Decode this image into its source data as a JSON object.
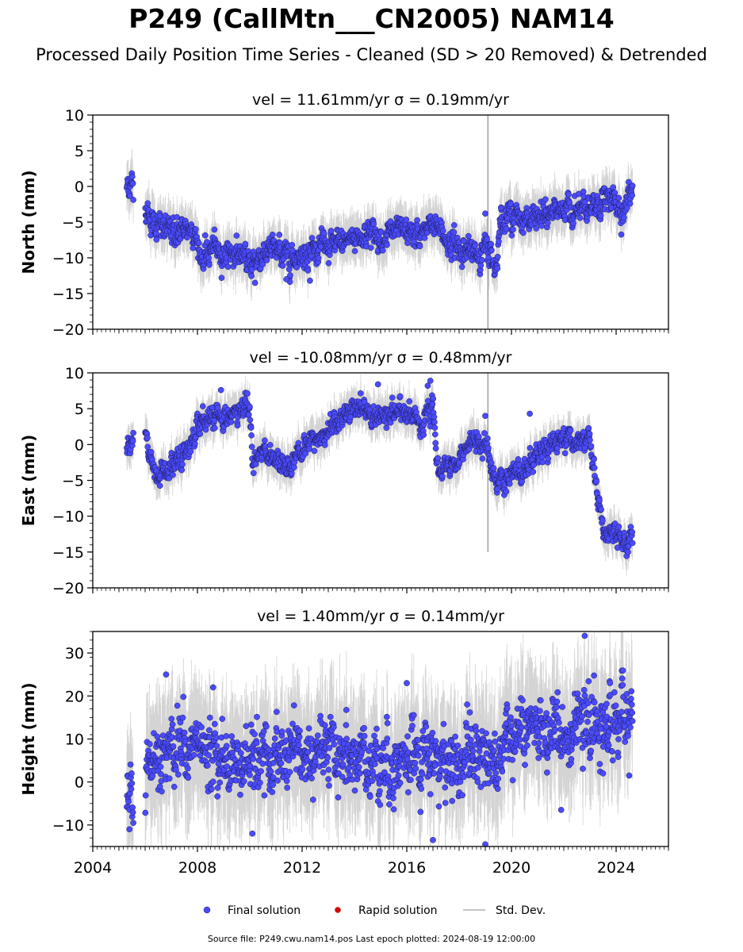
{
  "title": "P249 (CallMtn___CN2005) NAM14",
  "subtitle": "Processed Daily Position Time Series - Cleaned (SD > 20 Removed) & Detrended",
  "footer": "Source file: P249.cwu.nam14.pos  Last epoch plotted: 2024-08-19 12:00:00",
  "legend": {
    "final": "Final solution",
    "rapid": "Rapid solution",
    "stddev": "Std. Dev."
  },
  "colors": {
    "final_fill": "#4a4aff",
    "final_edge": "#1c1c50",
    "rapid_fill": "#dd0000",
    "stddev_line": "#b0b0b0"
  },
  "chart_data": [
    {
      "type": "scatter",
      "name": "north",
      "subtitle_vel": "vel = 11.61mm/yr",
      "subtitle_sigma": "σ = 0.19mm/yr",
      "ylabel": "North (mm)",
      "xlim": [
        2004.0,
        2026.0
      ],
      "ylim": [
        -20,
        10
      ],
      "yticks": [
        10,
        5,
        0,
        -5,
        -10,
        -15,
        -20
      ],
      "yticklabels": [
        "10",
        "5",
        "0",
        "−5",
        "−10",
        "−15",
        "−20"
      ],
      "trend_x": [
        2005.3,
        2005.5,
        2006.0,
        2006.2,
        2006.6,
        2007.0,
        2007.4,
        2007.8,
        2008.2,
        2008.6,
        2009.0,
        2009.5,
        2010.0,
        2010.5,
        2011.0,
        2011.5,
        2012.0,
        2012.5,
        2013.0,
        2013.5,
        2014.0,
        2014.5,
        2015.0,
        2015.5,
        2016.0,
        2016.5,
        2017.0,
        2017.5,
        2018.0,
        2018.5,
        2019.0,
        2019.2,
        2019.4,
        2019.6,
        2020.0,
        2020.5,
        2021.0,
        2021.5,
        2022.0,
        2022.5,
        2023.0,
        2023.5,
        2024.0,
        2024.3,
        2024.63
      ],
      "trend_y": [
        0.0,
        0.3,
        -2.5,
        -4.5,
        -6.0,
        -6.2,
        -6.5,
        -5.5,
        -10.5,
        -8.5,
        -9.5,
        -9.0,
        -11.0,
        -9.5,
        -9.0,
        -10.0,
        -9.5,
        -8.5,
        -8.5,
        -8.0,
        -7.0,
        -6.5,
        -7.0,
        -6.5,
        -6.5,
        -7.0,
        -5.0,
        -7.5,
        -8.5,
        -9.5,
        -9.0,
        -9.0,
        -11.5,
        -4.0,
        -4.0,
        -4.5,
        -4.5,
        -4.0,
        -3.0,
        -3.5,
        -3.5,
        -2.0,
        -2.0,
        -3.5,
        0.5
      ],
      "scatter": 1.3,
      "outliers": [
        [
          2010.2,
          -13.5
        ],
        [
          2011.4,
          -13.0
        ],
        [
          2012.3,
          -13.2
        ],
        [
          2019.0,
          -3.8
        ],
        [
          2021.3,
          -1.8
        ],
        [
          2019.6,
          -3.0
        ]
      ],
      "spike": [
        2019.1,
        -20,
        10
      ]
    },
    {
      "type": "scatter",
      "name": "east",
      "subtitle_vel": "vel = -10.08mm/yr",
      "subtitle_sigma": "σ = 0.48mm/yr",
      "ylabel": "East (mm)",
      "xlim": [
        2004.0,
        2026.0
      ],
      "ylim": [
        -20,
        10
      ],
      "yticks": [
        10,
        5,
        0,
        -5,
        -10,
        -15,
        -20
      ],
      "yticklabels": [
        "10",
        "5",
        "0",
        "−5",
        "−10",
        "−15",
        "−20"
      ],
      "trend_x": [
        2005.3,
        2005.5,
        2006.0,
        2006.2,
        2006.4,
        2006.6,
        2007.0,
        2007.5,
        2008.0,
        2008.5,
        2009.0,
        2009.5,
        2010.0,
        2010.1,
        2010.5,
        2011.0,
        2011.5,
        2012.0,
        2012.5,
        2013.0,
        2013.5,
        2014.0,
        2014.5,
        2015.0,
        2015.5,
        2016.0,
        2016.5,
        2017.0,
        2017.2,
        2017.5,
        2018.0,
        2018.5,
        2019.0,
        2019.2,
        2019.5,
        2020.0,
        2020.5,
        2021.0,
        2021.5,
        2022.0,
        2022.5,
        2023.0,
        2023.2,
        2023.5,
        2024.0,
        2024.3,
        2024.63
      ],
      "trend_y": [
        0.0,
        0.3,
        2.0,
        -1.5,
        -4.5,
        -4.0,
        -3.0,
        -1.0,
        2.0,
        3.5,
        3.5,
        4.5,
        5.5,
        -2.0,
        -1.0,
        -2.0,
        -3.0,
        -0.5,
        1.0,
        2.0,
        4.0,
        5.0,
        4.5,
        4.0,
        5.0,
        5.0,
        3.0,
        5.0,
        -4.0,
        -3.5,
        -2.0,
        0.0,
        1.0,
        -3.5,
        -6.0,
        -4.5,
        -3.5,
        -1.5,
        0.0,
        0.5,
        0.5,
        0.5,
        -5.0,
        -12.0,
        -12.5,
        -13.5,
        -12.5
      ],
      "scatter": 1.1,
      "outliers": [
        [
          2008.9,
          7.6
        ],
        [
          2014.9,
          8.4
        ],
        [
          2016.9,
          8.9
        ],
        [
          2016.8,
          8.2
        ],
        [
          2019.0,
          4.0
        ],
        [
          2020.7,
          4.3
        ]
      ],
      "spike": [
        2019.1,
        -15,
        10
      ]
    },
    {
      "type": "scatter",
      "name": "height",
      "subtitle_vel": "vel = 1.40mm/yr",
      "subtitle_sigma": "σ = 0.14mm/yr",
      "ylabel": "Height (mm)",
      "xlim": [
        2004.0,
        2026.0
      ],
      "ylim": [
        -15,
        35
      ],
      "yticks": [
        30,
        20,
        10,
        0,
        -10
      ],
      "yticklabels": [
        "30",
        "20",
        "10",
        "0",
        "−10"
      ],
      "trend_x": [
        2005.3,
        2006.0,
        2007.0,
        2008.0,
        2009.0,
        2010.0,
        2011.0,
        2012.0,
        2013.0,
        2014.0,
        2015.0,
        2016.0,
        2017.0,
        2018.0,
        2019.0,
        2020.0,
        2021.0,
        2022.0,
        2023.0,
        2024.0,
        2024.63
      ],
      "trend_y": [
        -1.0,
        4.0,
        9.0,
        8.0,
        5.0,
        4.0,
        5.0,
        6.0,
        6.0,
        6.0,
        5.0,
        5.0,
        5.0,
        5.0,
        6.0,
        11.0,
        11.0,
        12.0,
        13.0,
        14.0,
        15.0
      ],
      "scatter": 5.5,
      "outliers": [
        [
          2022.8,
          34.0
        ],
        [
          2006.8,
          25.0
        ],
        [
          2008.6,
          22.0
        ],
        [
          2016.0,
          23.0
        ],
        [
          2017.0,
          -13.5
        ],
        [
          2019.0,
          -14.5
        ],
        [
          2010.1,
          -12.0
        ],
        [
          2005.4,
          -11.0
        ],
        [
          2021.9,
          -6.5
        ],
        [
          2023.5,
          2.0
        ],
        [
          2024.5,
          1.5
        ]
      ]
    }
  ],
  "xaxis": {
    "ticks": [
      2004,
      2008,
      2012,
      2016,
      2020,
      2024
    ],
    "ticklabels": [
      "2004",
      "2008",
      "2012",
      "2016",
      "2020",
      "2024"
    ]
  }
}
